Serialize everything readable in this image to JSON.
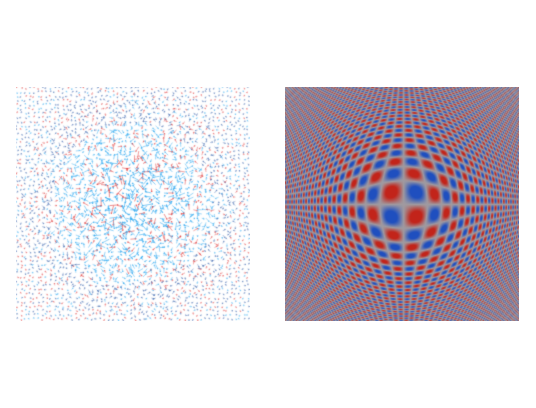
{
  "figure": {
    "panels": [
      {
        "id": "left",
        "kind": "vector-field",
        "colors": {
          "center_arrows": "#2aa7f0",
          "red_arrows": "#e03a3a",
          "outer_arrows": "#2c5aa8",
          "background": "#ffffff"
        }
      },
      {
        "id": "right",
        "kind": "interference-pattern",
        "colors": {
          "positive": "#c2241a",
          "negative": "#1f4fbf",
          "neutral": "#a09aa0"
        }
      }
    ]
  }
}
